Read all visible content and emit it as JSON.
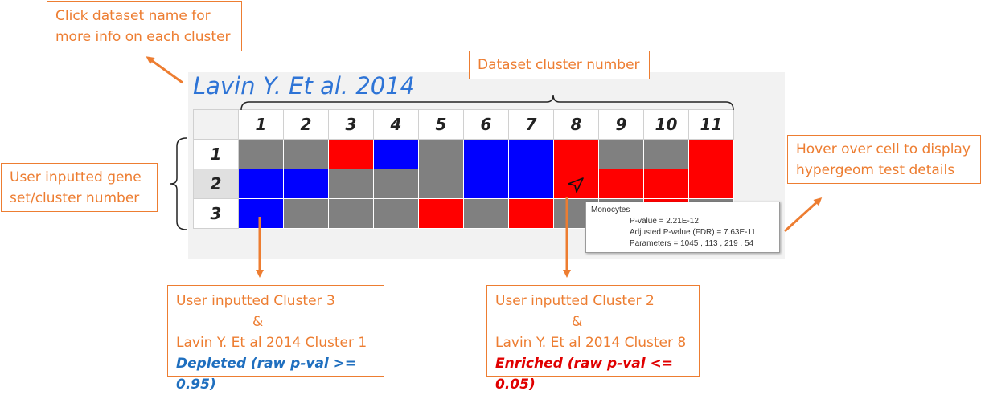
{
  "callouts": {
    "click_info": [
      "Click dataset name for",
      "more info on each cluster"
    ],
    "dataset_cluster": "Dataset cluster number",
    "user_gene_set": [
      "User inputted gene",
      "set/cluster number"
    ],
    "hover": [
      "Hover over cell to display",
      "hypergeom test details"
    ],
    "depleted_example": {
      "line1": "User inputted Cluster 3",
      "amp": "&",
      "line2": "Lavin Y. Et al 2014 Cluster 1",
      "result": "Depleted (raw p-val >= 0.95)"
    },
    "enriched_example": {
      "line1": "User inputted Cluster 2",
      "amp": "&",
      "line2": "Lavin Y. Et al 2014 Cluster 8",
      "result": "Enriched (raw p-val <= 0.05)"
    }
  },
  "heatmap": {
    "dataset_name": "Lavin Y. Et al. 2014",
    "columns": [
      "1",
      "2",
      "3",
      "4",
      "5",
      "6",
      "7",
      "8",
      "9",
      "10",
      "11"
    ],
    "rows": [
      "1",
      "2",
      "3"
    ],
    "cells": [
      [
        "grey",
        "grey",
        "red",
        "blue",
        "grey",
        "blue",
        "blue",
        "red",
        "grey",
        "grey",
        "red"
      ],
      [
        "blue",
        "blue",
        "grey",
        "grey",
        "grey",
        "blue",
        "blue",
        "red",
        "red",
        "red",
        "red"
      ],
      [
        "blue",
        "grey",
        "grey",
        "grey",
        "red",
        "grey",
        "red",
        "grey",
        "grey",
        "red",
        "grey"
      ]
    ]
  },
  "tooltip": {
    "title": "Monocytes",
    "pvalue": "P-value = 2.21E-12",
    "adjusted": "Adjusted P-value (FDR) = 7.63E-11",
    "parameters": "Parameters = 1045 , 113 , 219 , 54"
  },
  "colors": {
    "enriched": "#ff0000",
    "depleted": "#0000ff",
    "neutral": "#808080",
    "accent": "#ed7d31",
    "title": "#2e74d6",
    "depleted_text": "#1f6fbf",
    "enriched_text": "#e00000"
  }
}
